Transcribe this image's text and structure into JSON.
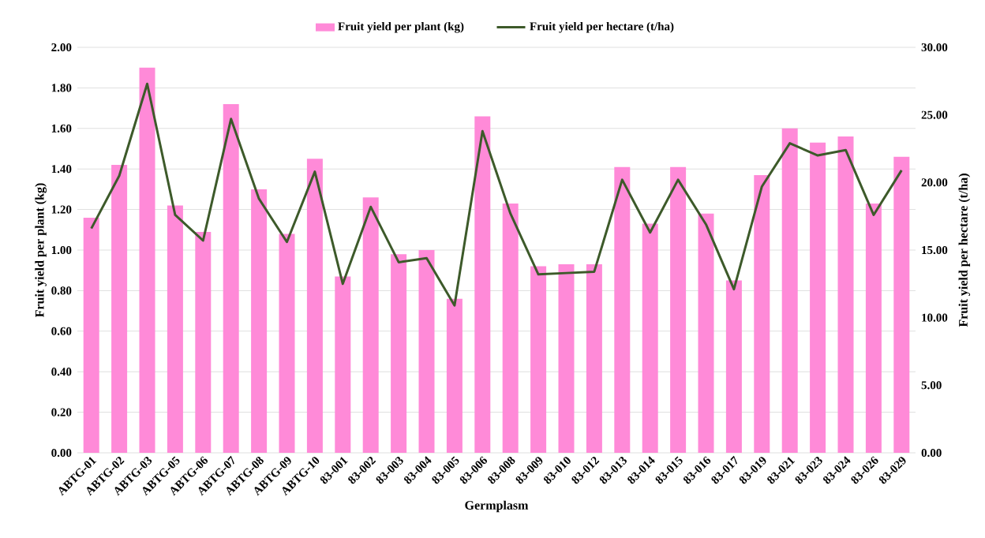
{
  "chart_data": {
    "type": "bar",
    "xlabel": "Germplasm",
    "ylabel": "Fruit yield per plant (kg)",
    "y2label": "Fruit yield per hectare (t/ha)",
    "categories": [
      "ABTG-01",
      "ABTG-02",
      "ABTG-03",
      "ABTG-05",
      "ABTG-06",
      "ABTG-07",
      "ABTG-08",
      "ABTG-09",
      "ABTG-10",
      "83-001",
      "83-002",
      "83-003",
      "83-004",
      "83-005",
      "83-006",
      "83-008",
      "83-009",
      "83-010",
      "83-012",
      "83-013",
      "83-014",
      "83-015",
      "83-016",
      "83-017",
      "83-019",
      "83-021",
      "83-023",
      "83-024",
      "83-026",
      "83-029"
    ],
    "series": [
      {
        "name": "Fruit yield per plant (kg)",
        "color": "#ff8ad8",
        "values": [
          1.16,
          1.42,
          1.9,
          1.22,
          1.09,
          1.72,
          1.3,
          1.08,
          1.45,
          0.87,
          1.26,
          0.98,
          1.0,
          0.76,
          1.66,
          1.23,
          0.92,
          0.93,
          0.93,
          1.41,
          1.13,
          1.41,
          1.18,
          0.85,
          1.37,
          1.6,
          1.53,
          1.56,
          1.23,
          1.46
        ]
      },
      {
        "name": "Fruit yield per hectare (t/ha)",
        "type": "line",
        "axis": "y2",
        "color": "#3d5a2a",
        "values": [
          16.6,
          20.5,
          27.3,
          17.6,
          15.7,
          24.7,
          18.8,
          15.6,
          20.8,
          12.5,
          18.2,
          14.1,
          14.4,
          10.9,
          23.8,
          17.7,
          13.2,
          13.3,
          13.4,
          20.2,
          16.3,
          20.2,
          16.9,
          12.1,
          19.7,
          22.9,
          22.0,
          22.4,
          17.6,
          20.9
        ]
      }
    ],
    "ylim": [
      0,
      2
    ],
    "yticks": [
      {
        "value": 0,
        "label": "0.00"
      },
      {
        "value": 0.2,
        "label": "0.20"
      },
      {
        "value": 0.4,
        "label": "0.40"
      },
      {
        "value": 0.6,
        "label": "0.60"
      },
      {
        "value": 0.8,
        "label": "0.80"
      },
      {
        "value": 1,
        "label": "1.00"
      },
      {
        "value": 1.2,
        "label": "1.20"
      },
      {
        "value": 1.4,
        "label": "1.40"
      },
      {
        "value": 1.6,
        "label": "1.60"
      },
      {
        "value": 1.8,
        "label": "1.80"
      },
      {
        "value": 2,
        "label": "2.00"
      }
    ],
    "y2lim": [
      0,
      30
    ],
    "y2ticks": [
      {
        "value": 0,
        "label": "0.00"
      },
      {
        "value": 5,
        "label": "5.00"
      },
      {
        "value": 10,
        "label": "10.00"
      },
      {
        "value": 15,
        "label": "15.00"
      },
      {
        "value": 20,
        "label": "20.00"
      },
      {
        "value": 25,
        "label": "25.00"
      },
      {
        "value": 30,
        "label": "30.00"
      }
    ],
    "grid": "y",
    "legend": "top"
  }
}
